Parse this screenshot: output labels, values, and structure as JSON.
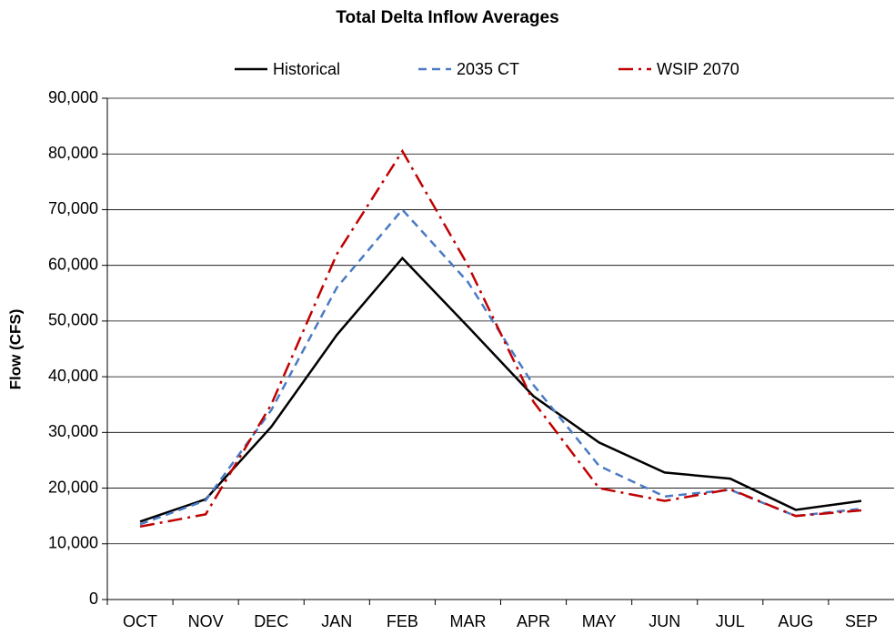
{
  "chart_data": {
    "type": "line",
    "title": "Total Delta Inflow Averages",
    "y_label": "Flow (CFS)",
    "categories": [
      "OCT",
      "NOV",
      "DEC",
      "JAN",
      "FEB",
      "MAR",
      "APR",
      "MAY",
      "JUN",
      "JUL",
      "AUG",
      "SEP"
    ],
    "series": [
      {
        "name": "Historical",
        "color": "#000000",
        "style": "solid",
        "values": [
          14000,
          18000,
          31000,
          47500,
          61300,
          49000,
          36500,
          28200,
          22800,
          21700,
          16100,
          17700
        ]
      },
      {
        "name": "2035 CT",
        "color": "#4a7ac4",
        "style": "dashed",
        "values": [
          13500,
          17800,
          34000,
          56000,
          70000,
          57000,
          38500,
          24000,
          18500,
          19700,
          15000,
          16300
        ]
      },
      {
        "name": "WSIP 2070",
        "color": "#c00000",
        "style": "dash-dot",
        "values": [
          13100,
          15300,
          35000,
          62000,
          80500,
          60000,
          35500,
          20000,
          17700,
          19800,
          15000,
          16000
        ]
      }
    ],
    "ylim": [
      0,
      90000
    ],
    "yticks": [
      0,
      {
        "value": 10000,
        "label": "10,000"
      },
      {
        "value": 20000,
        "label": "20,000"
      },
      {
        "value": 30000,
        "label": "30,000"
      },
      {
        "value": 40000,
        "label": "40,000"
      },
      {
        "value": 50000,
        "label": "50,000"
      },
      {
        "value": 60000,
        "label": "60,000"
      },
      {
        "value": 70000,
        "label": "70,000"
      },
      {
        "value": 80000,
        "label": "80,000"
      },
      {
        "value": 90000,
        "label": "90,000"
      }
    ],
    "grid": true,
    "legend": "top"
  }
}
